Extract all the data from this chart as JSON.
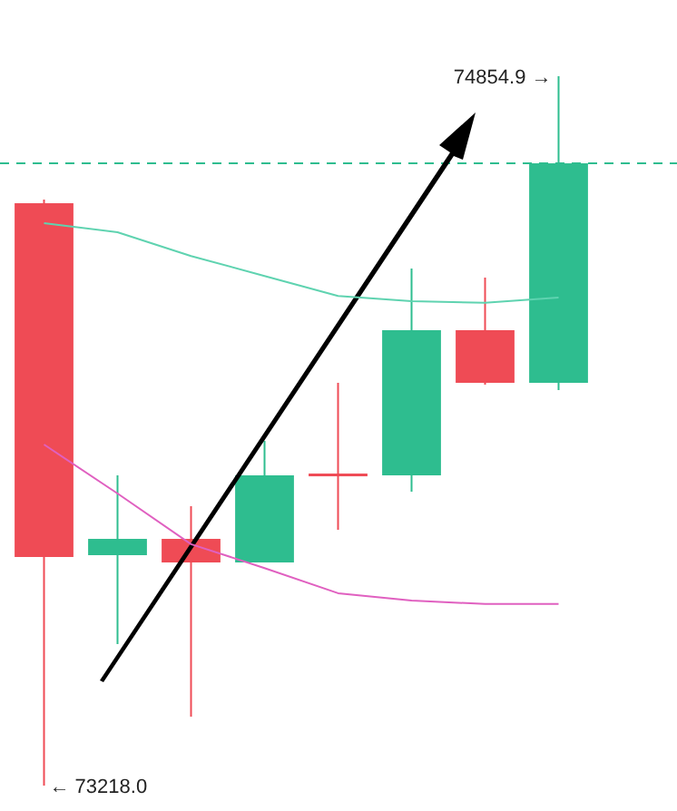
{
  "chart_data": {
    "type": "candlestick",
    "categories": [
      null,
      null,
      null,
      null,
      null,
      null,
      null,
      null
    ],
    "ohlc": [
      [
        74561.8,
        74570,
        73218.0,
        73745.5
      ],
      [
        73749.7,
        73933.9,
        73544.5,
        73787.3
      ],
      [
        73787.3,
        73862.7,
        73377.1,
        73732.9
      ],
      [
        73732.9,
        74013.4,
        73732.9,
        73933.9
      ],
      [
        73938,
        74147.4,
        73808.3,
        73934
      ],
      [
        73933.9,
        74411.1,
        73896.2,
        74268.8
      ],
      [
        74268.8,
        74390.2,
        74143.2,
        74147.4
      ],
      [
        74147.4,
        74854.9,
        74130.6,
        74653.9
      ]
    ],
    "colors": [
      "#ef4b55",
      "#2ebd8f",
      "#ef4b55",
      "#2ebd8f",
      "#ef4b55",
      "#2ebd8f",
      "#ef4b55",
      "#2ebd8f"
    ],
    "series": [
      {
        "type": "line",
        "color": "#5fd3b0",
        "values": [
          74516,
          74495,
          74440,
          74394,
          74348,
          74336,
          74332,
          74344
        ]
      },
      {
        "type": "line",
        "color": "#e060c0",
        "values": [
          74005,
          73892,
          73775,
          73720,
          73662,
          73645,
          73637,
          73637
        ]
      }
    ],
    "ref_lines": [
      {
        "axis": "y",
        "value": 74653.9,
        "color": "#2ebd8f",
        "line_style": "dashed"
      }
    ],
    "annotations": [
      "74854.9 →",
      "← 73218.0"
    ]
  }
}
